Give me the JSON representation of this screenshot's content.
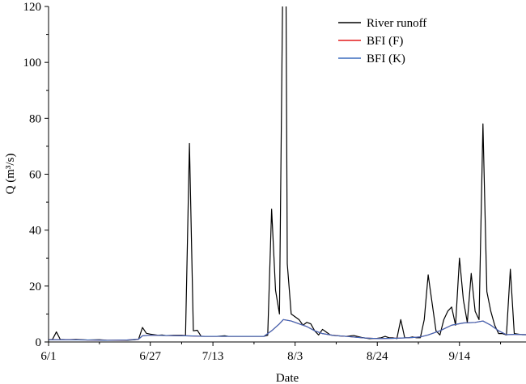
{
  "chart_data": {
    "type": "line",
    "title": "",
    "xlabel": "Date",
    "ylabel": "Q (m³/s)",
    "x_ticks": [
      "6/1",
      "6/27",
      "7/13",
      "8/3",
      "8/24",
      "9/14"
    ],
    "x_tick_days": [
      0,
      26,
      42,
      63,
      84,
      105
    ],
    "xlim_days": [
      0,
      122
    ],
    "ylim": [
      0,
      120
    ],
    "y_ticks": [
      0,
      20,
      40,
      60,
      80,
      100,
      120
    ],
    "legend_position": "top-right",
    "series": [
      {
        "name": "River runoff",
        "color": "#000000",
        "points": [
          [
            0,
            0.8
          ],
          [
            1,
            0.9
          ],
          [
            2,
            3.6
          ],
          [
            3,
            0.9
          ],
          [
            5,
            0.8
          ],
          [
            7,
            0.9
          ],
          [
            10,
            0.7
          ],
          [
            13,
            0.8
          ],
          [
            15,
            0.6
          ],
          [
            17,
            0.6
          ],
          [
            20,
            0.6
          ],
          [
            22,
            0.8
          ],
          [
            23,
            1.0
          ],
          [
            24,
            5.2
          ],
          [
            25,
            3.1
          ],
          [
            26,
            2.8
          ],
          [
            28,
            2.4
          ],
          [
            29,
            2.5
          ],
          [
            30,
            2.3
          ],
          [
            32,
            2.4
          ],
          [
            34,
            2.4
          ],
          [
            35,
            2.3
          ],
          [
            36,
            71.0
          ],
          [
            37,
            4.0
          ],
          [
            38,
            4.2
          ],
          [
            39,
            2.0
          ],
          [
            41,
            2.0
          ],
          [
            43,
            2.0
          ],
          [
            45,
            2.2
          ],
          [
            46,
            2.0
          ],
          [
            49,
            2.0
          ],
          [
            52,
            2.0
          ],
          [
            55,
            2.0
          ],
          [
            56,
            2.4
          ],
          [
            57,
            47.5
          ],
          [
            58,
            18.5
          ],
          [
            59,
            10.0
          ],
          [
            60,
            150.0
          ],
          [
            60.6,
            150.0
          ],
          [
            61,
            28.0
          ],
          [
            62,
            10.0
          ],
          [
            63,
            9.0
          ],
          [
            64,
            8.0
          ],
          [
            65,
            6.0
          ],
          [
            66,
            7.0
          ],
          [
            67,
            6.5
          ],
          [
            68,
            4.0
          ],
          [
            69,
            2.5
          ],
          [
            70,
            4.5
          ],
          [
            71,
            3.5
          ],
          [
            72,
            2.5
          ],
          [
            74,
            2.2
          ],
          [
            76,
            2.0
          ],
          [
            78,
            2.3
          ],
          [
            80,
            1.6
          ],
          [
            82,
            1.2
          ],
          [
            84,
            1.3
          ],
          [
            85,
            1.5
          ],
          [
            86,
            2.0
          ],
          [
            87,
            1.5
          ],
          [
            88,
            1.5
          ],
          [
            89,
            1.2
          ],
          [
            90,
            8.0
          ],
          [
            91,
            1.5
          ],
          [
            92,
            1.5
          ],
          [
            93,
            1.8
          ],
          [
            94,
            1.5
          ],
          [
            95,
            1.5
          ],
          [
            96,
            8.0
          ],
          [
            97,
            24.0
          ],
          [
            98,
            14.0
          ],
          [
            99,
            4.0
          ],
          [
            100,
            2.5
          ],
          [
            101,
            8.0
          ],
          [
            102,
            11.0
          ],
          [
            103,
            12.5
          ],
          [
            104,
            6.0
          ],
          [
            105,
            30.0
          ],
          [
            106,
            15.0
          ],
          [
            107,
            7.0
          ],
          [
            108,
            24.5
          ],
          [
            109,
            11.0
          ],
          [
            110,
            8.0
          ],
          [
            111,
            78.0
          ],
          [
            112,
            18.0
          ],
          [
            113,
            11.0
          ],
          [
            114,
            6.0
          ],
          [
            115,
            3.0
          ],
          [
            116,
            3.0
          ],
          [
            117,
            2.5
          ],
          [
            118,
            26.0
          ],
          [
            119,
            3.0
          ],
          [
            120,
            2.8
          ],
          [
            121,
            2.6
          ],
          [
            122,
            2.6
          ]
        ]
      },
      {
        "name": "BFI (F)",
        "color": "#e31a1c",
        "points": [
          [
            0,
            0.8
          ],
          [
            5,
            0.8
          ],
          [
            10,
            0.7
          ],
          [
            15,
            0.6
          ],
          [
            20,
            0.7
          ],
          [
            23,
            1.0
          ],
          [
            24,
            2.2
          ],
          [
            26,
            2.4
          ],
          [
            30,
            2.3
          ],
          [
            35,
            2.2
          ],
          [
            40,
            2.0
          ],
          [
            45,
            2.0
          ],
          [
            50,
            2.0
          ],
          [
            55,
            2.0
          ],
          [
            57,
            4.0
          ],
          [
            59,
            6.5
          ],
          [
            60,
            8.0
          ],
          [
            62,
            7.5
          ],
          [
            64,
            6.5
          ],
          [
            66,
            5.5
          ],
          [
            68,
            4.0
          ],
          [
            70,
            3.0
          ],
          [
            73,
            2.3
          ],
          [
            76,
            2.0
          ],
          [
            80,
            1.5
          ],
          [
            84,
            1.2
          ],
          [
            88,
            1.3
          ],
          [
            92,
            1.5
          ],
          [
            95,
            1.8
          ],
          [
            97,
            2.5
          ],
          [
            100,
            4.0
          ],
          [
            103,
            6.0
          ],
          [
            106,
            6.8
          ],
          [
            109,
            7.0
          ],
          [
            111,
            7.5
          ],
          [
            113,
            6.0
          ],
          [
            115,
            4.0
          ],
          [
            117,
            2.6
          ],
          [
            119,
            2.7
          ],
          [
            122,
            2.6
          ]
        ]
      },
      {
        "name": "BFI (K)",
        "color": "#3a6bbd",
        "points": [
          [
            0,
            0.8
          ],
          [
            5,
            0.8
          ],
          [
            10,
            0.7
          ],
          [
            15,
            0.6
          ],
          [
            20,
            0.7
          ],
          [
            23,
            1.0
          ],
          [
            24,
            2.2
          ],
          [
            26,
            2.4
          ],
          [
            30,
            2.3
          ],
          [
            35,
            2.2
          ],
          [
            40,
            2.0
          ],
          [
            45,
            2.0
          ],
          [
            50,
            2.0
          ],
          [
            55,
            2.0
          ],
          [
            57,
            4.0
          ],
          [
            59,
            6.5
          ],
          [
            60,
            8.0
          ],
          [
            62,
            7.5
          ],
          [
            64,
            6.5
          ],
          [
            66,
            5.5
          ],
          [
            68,
            4.0
          ],
          [
            70,
            3.0
          ],
          [
            73,
            2.3
          ],
          [
            76,
            2.0
          ],
          [
            80,
            1.5
          ],
          [
            84,
            1.2
          ],
          [
            88,
            1.3
          ],
          [
            92,
            1.5
          ],
          [
            95,
            1.8
          ],
          [
            97,
            2.5
          ],
          [
            100,
            4.0
          ],
          [
            103,
            6.0
          ],
          [
            106,
            6.8
          ],
          [
            109,
            7.0
          ],
          [
            111,
            7.5
          ],
          [
            113,
            6.0
          ],
          [
            115,
            4.0
          ],
          [
            117,
            2.6
          ],
          [
            119,
            2.7
          ],
          [
            122,
            2.6
          ]
        ]
      }
    ]
  }
}
